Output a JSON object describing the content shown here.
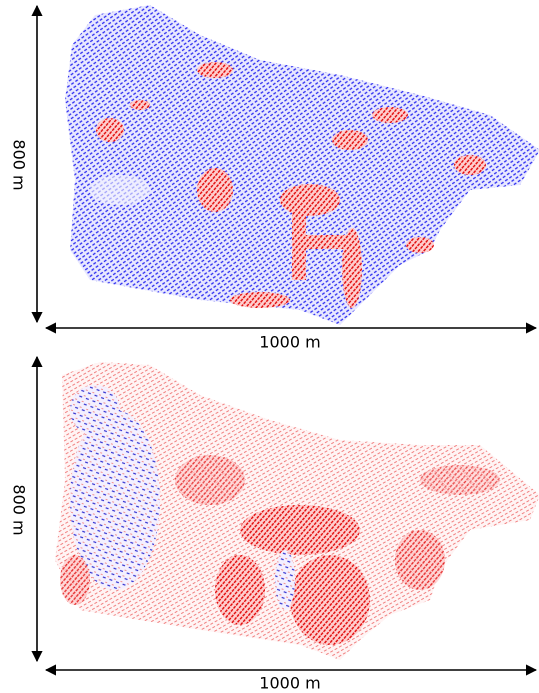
{
  "panels": [
    {
      "height_label": "800 m",
      "width_label": "1000 m"
    },
    {
      "height_label": "800 m",
      "width_label": "1000 m"
    }
  ]
}
